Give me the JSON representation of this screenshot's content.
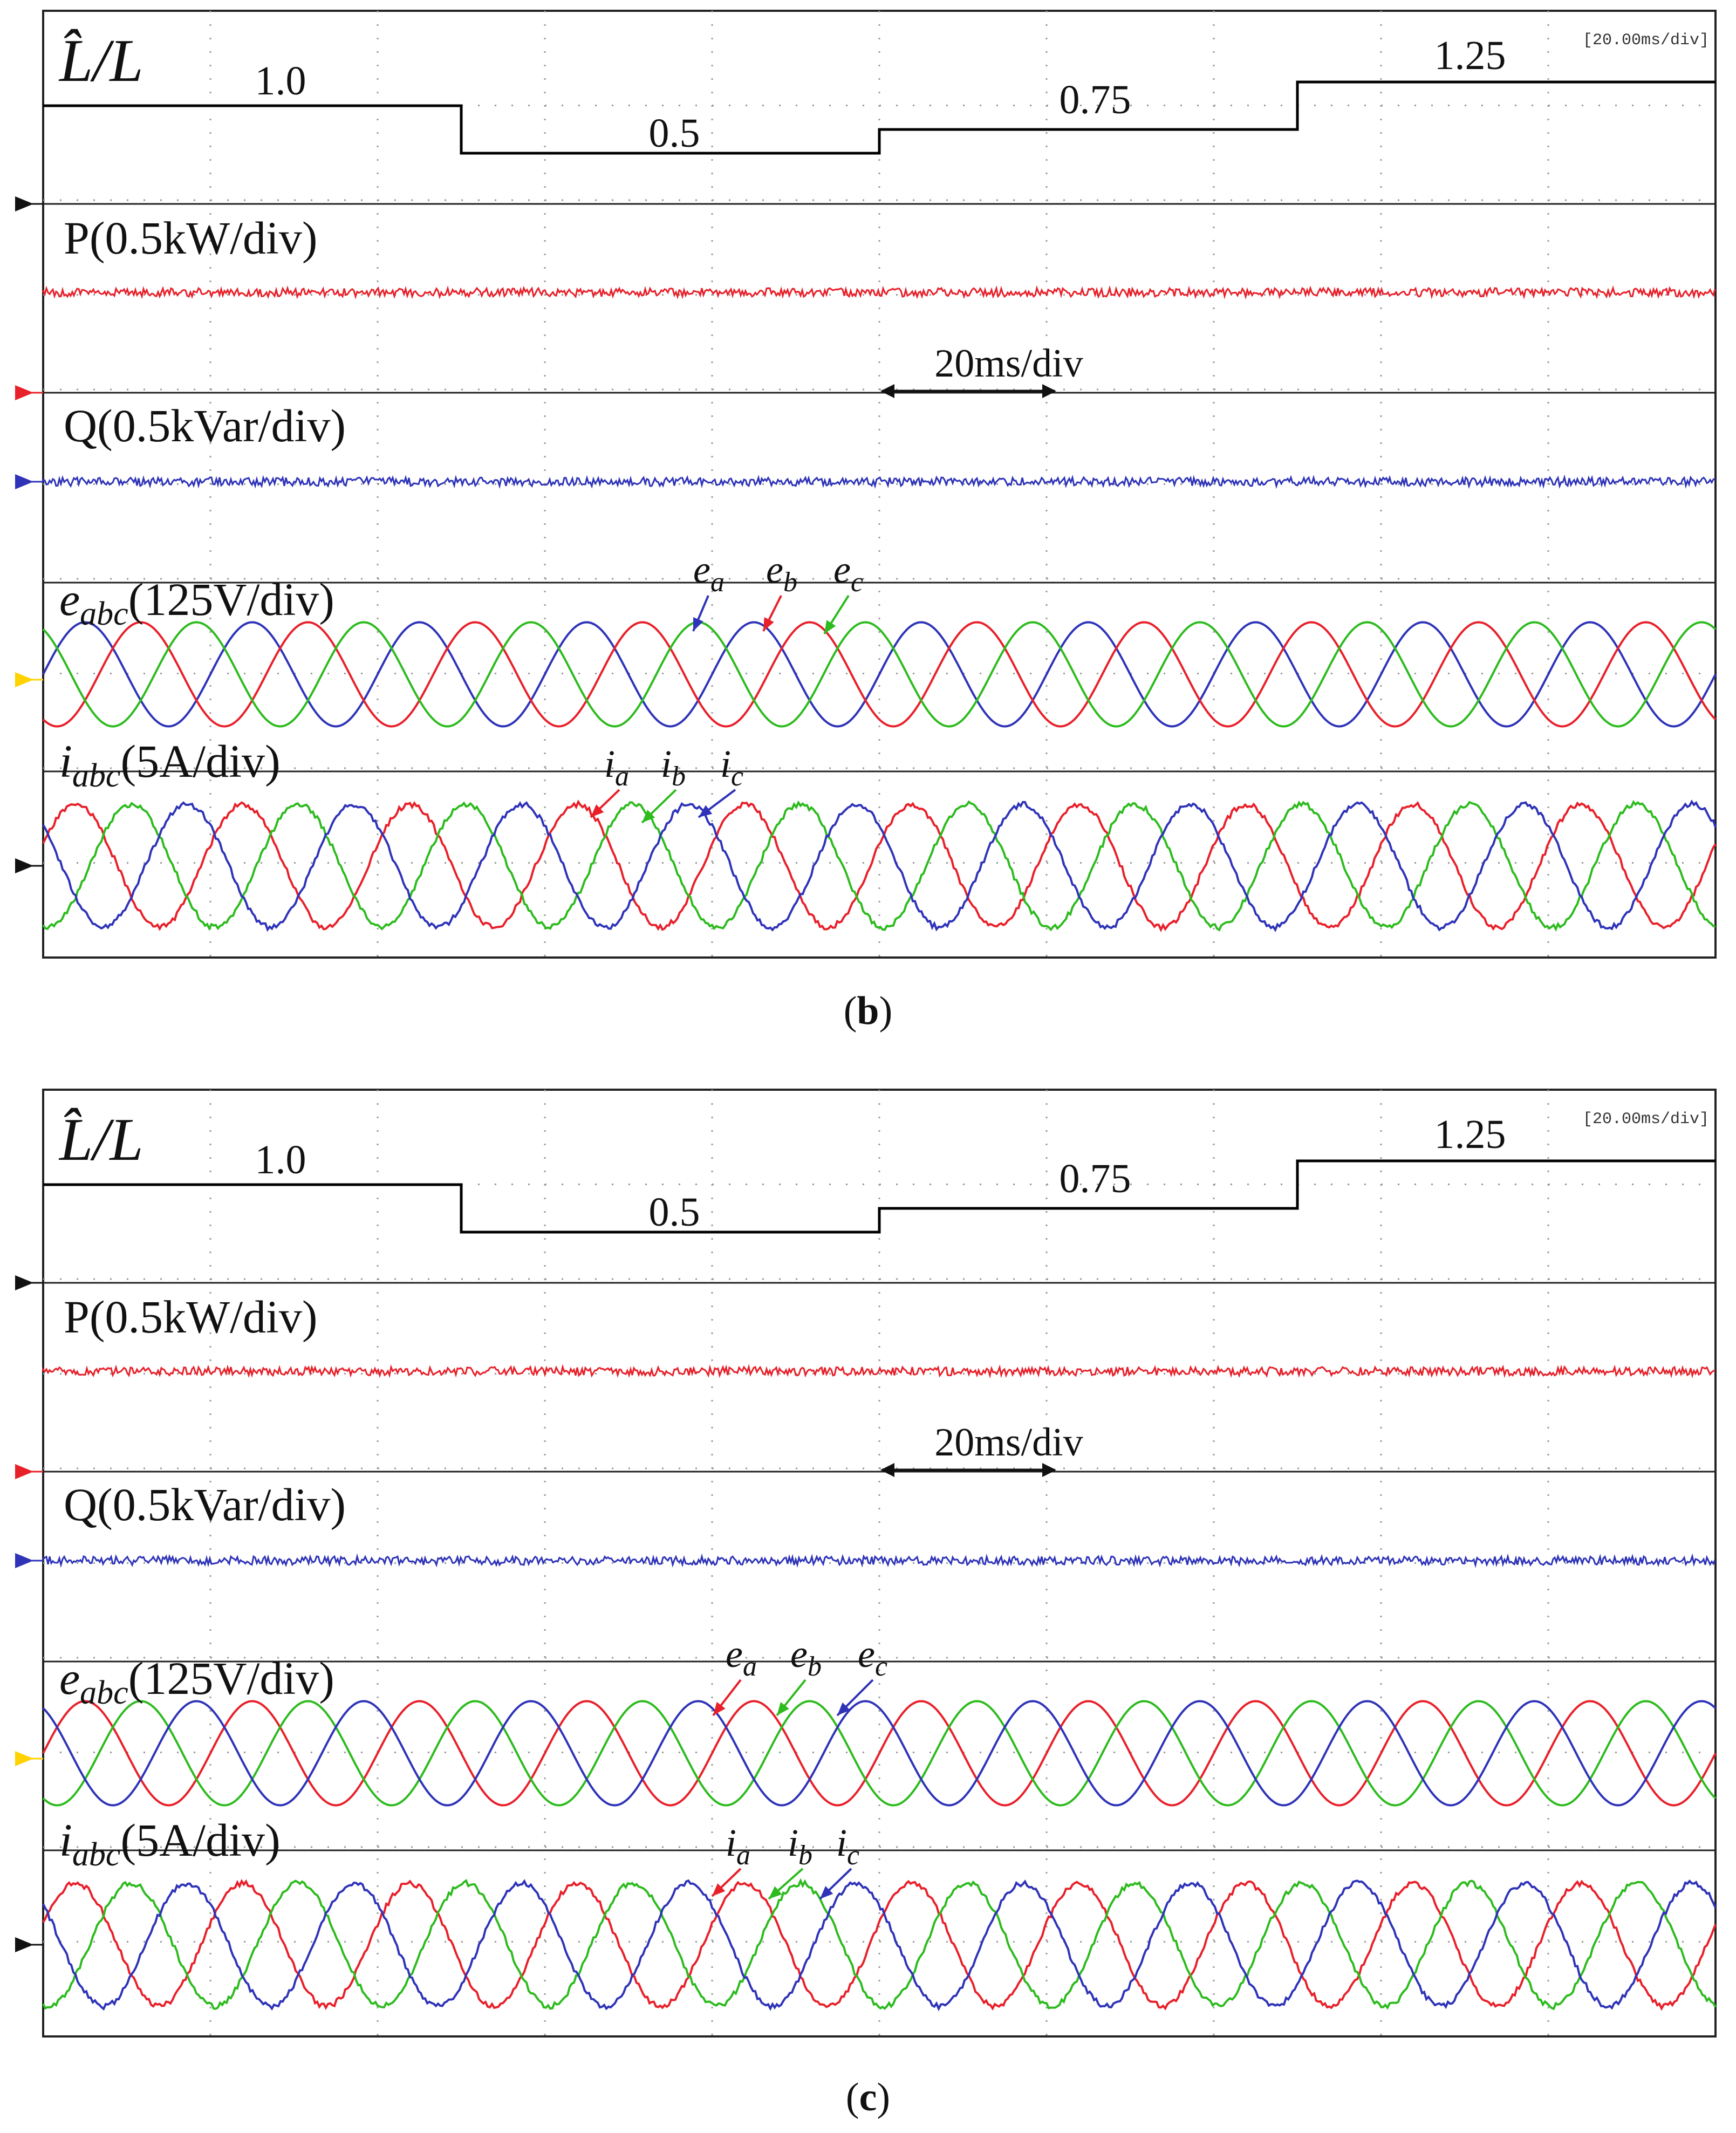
{
  "colors": {
    "phase_a_e": "#2e33b8",
    "phase_b_e": "#e8202a",
    "phase_c_e": "#2dbb1e",
    "power_p": "#e8202a",
    "power_q": "#2e33b8",
    "step": "#000000",
    "grid_dot": "#9a9a9a",
    "marker_black": "#111111",
    "marker_red": "#e8202a",
    "marker_blue": "#2e33b8",
    "marker_yellow": "#ffd200"
  },
  "panels": [
    {
      "id": "b",
      "caption_paren_open": "(",
      "caption_letter": "b",
      "caption_paren_close": ")",
      "timebase_badge": "[20.00ms/div]",
      "traces": {
        "inductance_label": "L̂/L",
        "power_label": "P(0.5kW/div)",
        "reactive_label": "Q(0.5kVar/div)",
        "voltage_label_main": "e",
        "voltage_label_sub": "abc",
        "voltage_label_rest": "(125V/div)",
        "current_label_main": "i",
        "current_label_sub": "abc",
        "current_label_rest": "(5A/div)"
      },
      "scale_annotation": "20ms/div",
      "voltage_phase_labels": [
        {
          "main": "e",
          "sub": "a",
          "color": "#2e33b8"
        },
        {
          "main": "e",
          "sub": "b",
          "color": "#e8202a"
        },
        {
          "main": "e",
          "sub": "c",
          "color": "#2dbb1e"
        }
      ],
      "current_phase_labels": [
        {
          "main": "i",
          "sub": "a",
          "color": "#e8202a"
        },
        {
          "main": "i",
          "sub": "b",
          "color": "#2dbb1e"
        },
        {
          "main": "i",
          "sub": "c",
          "color": "#2e33b8"
        }
      ]
    },
    {
      "id": "c",
      "caption_paren_open": "(",
      "caption_letter": "c",
      "caption_paren_close": ")",
      "timebase_badge": "[20.00ms/div]",
      "traces": {
        "inductance_label": "L̂/L",
        "power_label": "P(0.5kW/div)",
        "reactive_label": "Q(0.5kVar/div)",
        "voltage_label_main": "e",
        "voltage_label_sub": "abc",
        "voltage_label_rest": "(125V/div)",
        "current_label_main": "i",
        "current_label_sub": "abc",
        "current_label_rest": "(5A/div)"
      },
      "scale_annotation": "20ms/div",
      "voltage_phase_labels": [
        {
          "main": "e",
          "sub": "a",
          "color": "#e8202a"
        },
        {
          "main": "e",
          "sub": "b",
          "color": "#2dbb1e"
        },
        {
          "main": "e",
          "sub": "c",
          "color": "#2e33b8"
        }
      ],
      "current_phase_labels": [
        {
          "main": "i",
          "sub": "a",
          "color": "#e8202a"
        },
        {
          "main": "i",
          "sub": "b",
          "color": "#2dbb1e"
        },
        {
          "main": "i",
          "sub": "c",
          "color": "#2e33b8"
        }
      ]
    }
  ],
  "chart_data": [
    {
      "type": "line",
      "title": "(b)",
      "x_unit": "ms",
      "x_divisions": 10,
      "ms_per_div": 20,
      "xlim": [
        0,
        200
      ],
      "series": [
        {
          "name": "L̂/L",
          "kind": "step",
          "segments": [
            {
              "x_start": 0,
              "x_end": 50,
              "value": 1.0,
              "label": "1.0"
            },
            {
              "x_start": 50,
              "x_end": 100,
              "value": 0.5,
              "label": "0.5"
            },
            {
              "x_start": 100,
              "x_end": 150,
              "value": 0.75,
              "label": "0.75"
            },
            {
              "x_start": 150,
              "x_end": 200,
              "value": 1.25,
              "label": "1.25"
            }
          ]
        },
        {
          "name": "P",
          "scale": "0.5kW/div",
          "kind": "noisy_flat"
        },
        {
          "name": "Q",
          "scale": "0.5kVar/div",
          "kind": "noisy_flat"
        },
        {
          "name": "e_abc",
          "scale": "125V/div",
          "kind": "three_phase_sine",
          "cycles": 10,
          "amplitude_div": 0.55,
          "phase_order": [
            "e_a",
            "e_b",
            "e_c"
          ],
          "phase_colors": [
            "#2e33b8",
            "#e8202a",
            "#2dbb1e"
          ]
        },
        {
          "name": "i_abc",
          "scale": "5A/div",
          "kind": "three_phase_sine",
          "cycles": 10,
          "amplitude_div": 0.65,
          "phase_order": [
            "i_a",
            "i_b",
            "i_c"
          ],
          "phase_colors": [
            "#e8202a",
            "#2dbb1e",
            "#2e33b8"
          ]
        }
      ]
    },
    {
      "type": "line",
      "title": "(c)",
      "x_unit": "ms",
      "x_divisions": 10,
      "ms_per_div": 20,
      "xlim": [
        0,
        200
      ],
      "series": [
        {
          "name": "L̂/L",
          "kind": "step",
          "segments": [
            {
              "x_start": 0,
              "x_end": 50,
              "value": 1.0,
              "label": "1.0"
            },
            {
              "x_start": 50,
              "x_end": 100,
              "value": 0.5,
              "label": "0.5"
            },
            {
              "x_start": 100,
              "x_end": 150,
              "value": 0.75,
              "label": "0.75"
            },
            {
              "x_start": 150,
              "x_end": 200,
              "value": 1.25,
              "label": "1.25"
            }
          ]
        },
        {
          "name": "P",
          "scale": "0.5kW/div",
          "kind": "noisy_flat"
        },
        {
          "name": "Q",
          "scale": "0.5kVar/div",
          "kind": "noisy_flat"
        },
        {
          "name": "e_abc",
          "scale": "125V/div",
          "kind": "three_phase_sine",
          "cycles": 10,
          "amplitude_div": 0.55,
          "phase_order": [
            "e_a",
            "e_b",
            "e_c"
          ],
          "phase_colors": [
            "#e8202a",
            "#2dbb1e",
            "#2e33b8"
          ]
        },
        {
          "name": "i_abc",
          "scale": "5A/div",
          "kind": "three_phase_sine",
          "cycles": 10,
          "amplitude_div": 0.65,
          "phase_order": [
            "i_a",
            "i_b",
            "i_c"
          ],
          "phase_colors": [
            "#e8202a",
            "#2dbb1e",
            "#2e33b8"
          ]
        }
      ]
    }
  ]
}
